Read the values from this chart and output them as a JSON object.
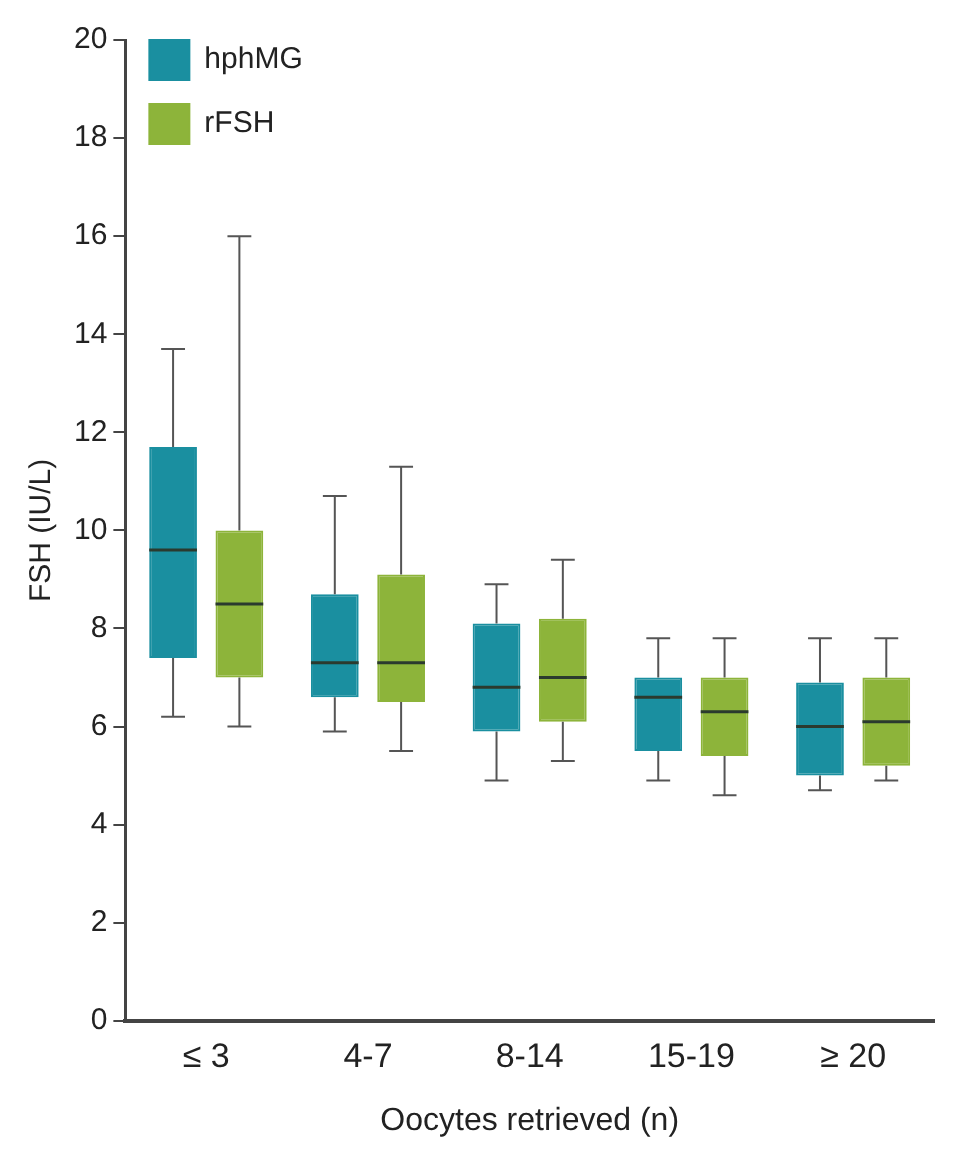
{
  "chart_data": {
    "type": "box",
    "xlabel": "Oocytes retrieved (n)",
    "ylabel": "FSH (IU/L)",
    "categories": [
      "≤ 3",
      "4-7",
      "8-14",
      "15-19",
      "≥ 20"
    ],
    "series": [
      {
        "name": "hphMG",
        "color": "#1a8fa0",
        "boxes": [
          {
            "low": 6.2,
            "q1": 7.4,
            "median": 9.6,
            "q3": 11.7,
            "high": 13.7
          },
          {
            "low": 5.9,
            "q1": 6.6,
            "median": 7.3,
            "q3": 8.7,
            "high": 10.7
          },
          {
            "low": 4.9,
            "q1": 5.9,
            "median": 6.8,
            "q3": 8.1,
            "high": 8.9
          },
          {
            "low": 4.9,
            "q1": 5.5,
            "median": 6.6,
            "q3": 7.0,
            "high": 7.8
          },
          {
            "low": 4.7,
            "q1": 5.0,
            "median": 6.0,
            "q3": 6.9,
            "high": 7.8
          }
        ]
      },
      {
        "name": "rFSH",
        "color": "#8db43a",
        "boxes": [
          {
            "low": 6.0,
            "q1": 7.0,
            "median": 8.5,
            "q3": 10.0,
            "high": 16.0
          },
          {
            "low": 5.5,
            "q1": 6.5,
            "median": 7.3,
            "q3": 9.1,
            "high": 11.3
          },
          {
            "low": 5.3,
            "q1": 6.1,
            "median": 7.0,
            "q3": 8.2,
            "high": 9.4
          },
          {
            "low": 4.6,
            "q1": 5.4,
            "median": 6.3,
            "q3": 7.0,
            "high": 7.8
          },
          {
            "low": 4.9,
            "q1": 5.2,
            "median": 6.1,
            "q3": 7.0,
            "high": 7.8
          }
        ]
      }
    ],
    "ylim": [
      0,
      20
    ],
    "yticks": [
      0,
      2,
      4,
      6,
      8,
      10,
      12,
      14,
      16,
      18,
      20
    ],
    "grid": false,
    "legend": "top left"
  }
}
